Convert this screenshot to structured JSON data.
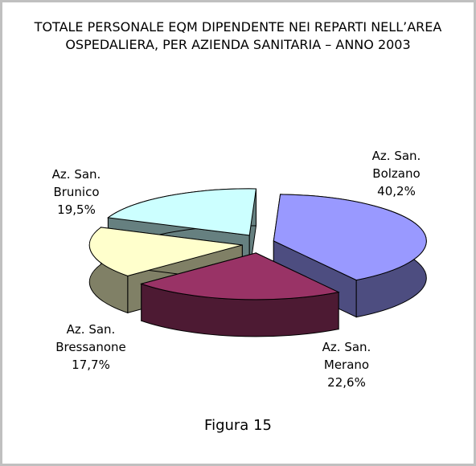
{
  "chart_data": {
    "type": "pie",
    "title": "TOTALE PERSONALE EQM DIPENDENTE NEI REPARTI NELL’AREA OSPEDALIERA, PER AZIENDA SANITARIA – ANNO 2003",
    "categories": [
      "Az. San. Bolzano",
      "Az. San. Merano",
      "Az. San. Bressanone",
      "Az. San. Brunico"
    ],
    "values": [
      40.2,
      22.6,
      17.7,
      19.5
    ],
    "value_labels": [
      "40,2%",
      "22,6%",
      "17,7%",
      "19,5%"
    ],
    "colors": [
      "#9999ff",
      "#993366",
      "#ffffcc",
      "#ccffff"
    ],
    "caption": "Figura 15"
  }
}
